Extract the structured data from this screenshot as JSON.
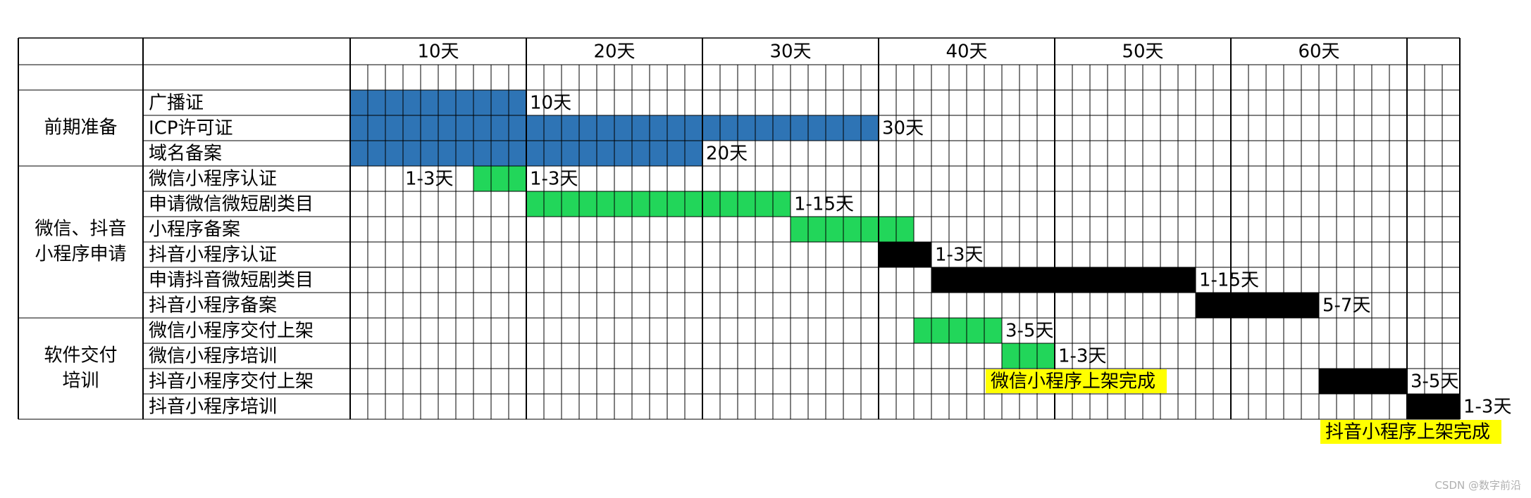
{
  "chart_data": {
    "type": "gantt",
    "unit": "天",
    "total_days": 63,
    "milestone_ticks": [
      "10天",
      "20天",
      "30天",
      "40天",
      "50天",
      "60天"
    ],
    "colors": {
      "blue": "#2e74b5",
      "green": "#22d65a",
      "black": "#000000",
      "highlight": "#ffff00",
      "highlight_text": "#ff0000"
    },
    "groups": [
      {
        "name": "前期准备",
        "lines": [
          "前期准备"
        ],
        "tasks": [
          {
            "name": "广播证",
            "start": 0,
            "end": 10,
            "color": "blue",
            "label": "10天"
          },
          {
            "name": "ICP许可证",
            "start": 0,
            "end": 30,
            "color": "blue",
            "label": "30天"
          },
          {
            "name": "域名备案",
            "start": 0,
            "end": 20,
            "color": "blue",
            "label": "20天"
          }
        ]
      },
      {
        "name": "微信、抖音小程序申请",
        "lines": [
          "微信、抖音",
          "小程序申请"
        ],
        "tasks": [
          {
            "name": "微信小程序认证",
            "start": 7,
            "end": 10,
            "color": "green",
            "label": "1-3天",
            "prelabel": "1-3天"
          },
          {
            "name": "申请微信微短剧类目",
            "start": 10,
            "end": 25,
            "color": "green",
            "label": "1-15天"
          },
          {
            "name": "小程序备案",
            "start": 25,
            "end": 32,
            "color": "green",
            "label": ""
          },
          {
            "name": "抖音小程序认证",
            "start": 30,
            "end": 33,
            "color": "black",
            "label": "1-3天"
          },
          {
            "name": "申请抖音微短剧类目",
            "start": 33,
            "end": 48,
            "color": "black",
            "label": "1-15天"
          },
          {
            "name": "抖音小程序备案",
            "start": 48,
            "end": 55,
            "color": "black",
            "label": "5-7天"
          }
        ]
      },
      {
        "name": "软件交付培训",
        "lines": [
          "软件交付",
          "培训"
        ],
        "tasks": [
          {
            "name": "微信小程序交付上架",
            "start": 32,
            "end": 37,
            "color": "green",
            "label": "3-5天"
          },
          {
            "name": "微信小程序培训",
            "start": 37,
            "end": 40,
            "color": "green",
            "label": "1-3天"
          },
          {
            "name": "抖音小程序交付上架",
            "start": 55,
            "end": 60,
            "color": "black",
            "label": "3-5天"
          },
          {
            "name": "抖音小程序培训",
            "start": 60,
            "end": 63,
            "color": "black",
            "label": "1-3天"
          }
        ]
      }
    ],
    "milestones": [
      {
        "text": "微信小程序上架完成",
        "after_task": "微信小程序培训",
        "day": 36
      },
      {
        "text": "抖音小程序上架完成",
        "after_task": "抖音小程序培训",
        "day": 55
      }
    ]
  },
  "watermark": "CSDN @数字前沿"
}
